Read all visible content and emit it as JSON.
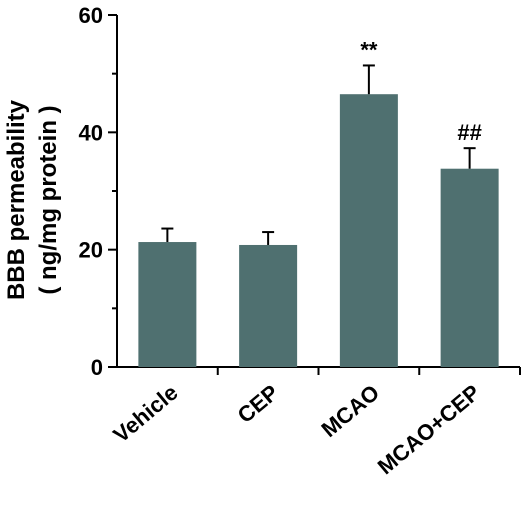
{
  "chart_data": {
    "type": "bar",
    "categories": [
      "Vehicle",
      "CEP",
      "MCAO",
      "MCAO+CEP"
    ],
    "values": [
      21.3,
      20.8,
      46.5,
      33.8
    ],
    "errors": [
      2.3,
      2.2,
      4.9,
      3.5
    ],
    "annotations": [
      "",
      "",
      "**",
      "##"
    ],
    "ylabel_line1": "BBB permeability",
    "ylabel_line2": "( ng/mg protein )",
    "ylim": [
      0,
      60
    ],
    "yticks": [
      0,
      20,
      40,
      60
    ],
    "bar_color": "#4f7070",
    "axis_color": "#000000",
    "grid": false
  }
}
